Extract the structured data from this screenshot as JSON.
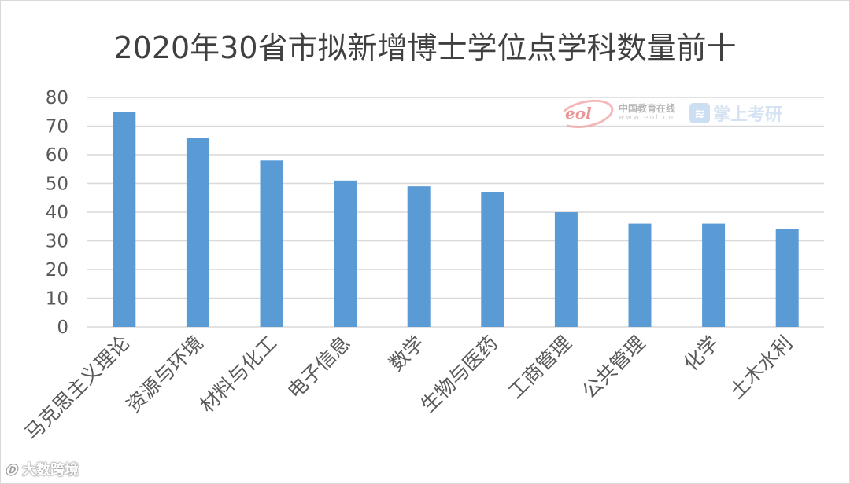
{
  "chart_data": {
    "type": "bar",
    "title": "2020年30省市拟新增博士学位点学科数量前十",
    "categories": [
      "马克思主义理论",
      "资源与环境",
      "材料与化工",
      "电子信息",
      "数学",
      "生物与医药",
      "工商管理",
      "公共管理",
      "化学",
      "土木水利"
    ],
    "values": [
      75,
      66,
      58,
      51,
      49,
      47,
      40,
      36,
      36,
      34
    ],
    "ylim": [
      0,
      80
    ],
    "yticks": [
      0,
      10,
      20,
      30,
      40,
      50,
      60,
      70,
      80
    ],
    "xlabel": "",
    "ylabel": "",
    "grid": true,
    "bar_color": "#5b9bd5",
    "grid_color": "#d9d9d9"
  },
  "watermark": {
    "logo_text": "eol",
    "org_name": "中国教育在线",
    "org_url": "www.eol.cn",
    "brand_name": "掌上考研"
  },
  "footer": {
    "logo": "Ⓓ",
    "name": "大数跨境"
  }
}
